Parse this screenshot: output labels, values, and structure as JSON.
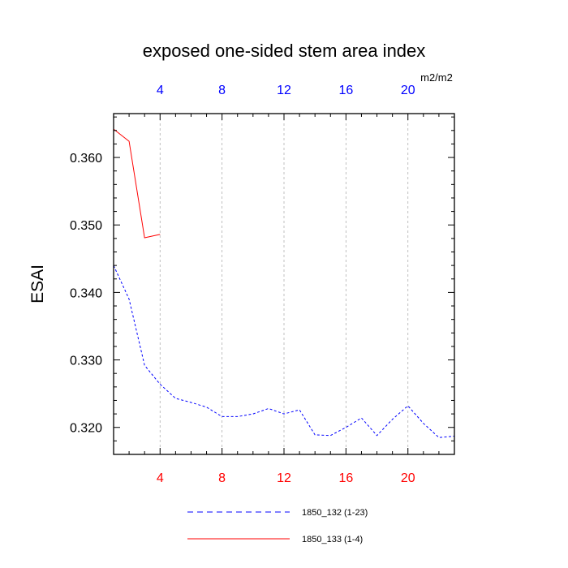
{
  "chart_data": {
    "type": "line",
    "title": "exposed one-sided stem area index",
    "ylabel": "ESAI",
    "units": "m2/m2",
    "xlim": [
      1,
      23
    ],
    "ylim": [
      0.316,
      0.3665
    ],
    "x_ticks": [
      4,
      8,
      12,
      16,
      20
    ],
    "y_ticks": [
      0.32,
      0.33,
      0.34,
      0.35,
      0.36
    ],
    "y_tick_labels": [
      "0.320",
      "0.330",
      "0.340",
      "0.350",
      "0.360"
    ],
    "x_grid": true,
    "series": [
      {
        "name": "1850_132 (1-23)",
        "color": "#0000ff",
        "dash": "dashed",
        "x": [
          1,
          2,
          3,
          4,
          5,
          6,
          7,
          8,
          9,
          10,
          11,
          12,
          13,
          14,
          15,
          16,
          17,
          18,
          19,
          20,
          21,
          22,
          23
        ],
        "y": [
          0.344,
          0.339,
          0.3292,
          0.3264,
          0.3243,
          0.3237,
          0.323,
          0.3216,
          0.3216,
          0.322,
          0.3228,
          0.322,
          0.3226,
          0.3189,
          0.3188,
          0.32,
          0.3214,
          0.3188,
          0.3212,
          0.3232,
          0.3206,
          0.3185,
          0.3187
        ]
      },
      {
        "name": "1850_133 (1-4)",
        "color": "#ff0000",
        "dash": "solid",
        "x": [
          1,
          2,
          3,
          4
        ],
        "y": [
          0.3642,
          0.3624,
          0.3481,
          0.3486
        ]
      }
    ],
    "legend_position": "bottom"
  }
}
